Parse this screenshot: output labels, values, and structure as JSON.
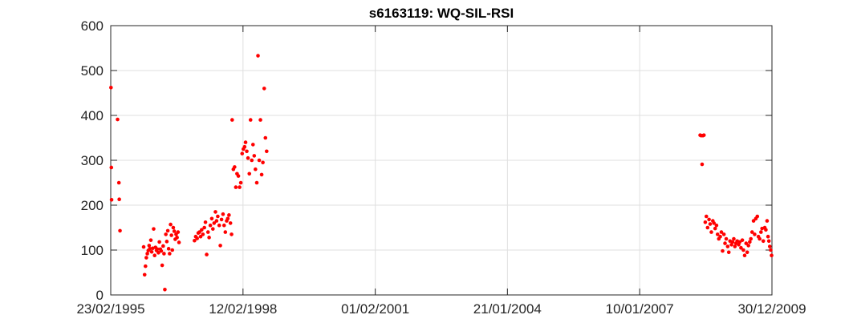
{
  "chart_data": {
    "type": "scatter",
    "title": "s6163119: WQ-SIL-RSI",
    "xlabel": "",
    "ylabel": "",
    "x_type": "date",
    "xlim": [
      "1995-02-23",
      "2009-12-30"
    ],
    "ylim": [
      0,
      600
    ],
    "x_ticks": [
      "23/02/1995",
      "12/02/1998",
      "01/02/2001",
      "21/01/2004",
      "10/01/2007",
      "30/12/2009"
    ],
    "y_ticks": [
      "0",
      "100",
      "200",
      "300",
      "400",
      "500",
      "600"
    ],
    "grid": true,
    "marker_color": "#ff0000",
    "series": [
      {
        "points": [
          [
            "1995-02-25",
            462
          ],
          [
            "1995-02-28",
            284
          ],
          [
            "1995-03-02",
            212
          ],
          [
            "1995-04-20",
            391
          ],
          [
            "1995-05-01",
            250
          ],
          [
            "1995-05-04",
            213
          ],
          [
            "1995-05-10",
            143
          ],
          [
            "1995-11-20",
            107
          ],
          [
            "1995-11-28",
            45
          ],
          [
            "1995-12-05",
            64
          ],
          [
            "1995-12-12",
            83
          ],
          [
            "1995-12-20",
            92
          ],
          [
            "1995-12-28",
            99
          ],
          [
            "1996-01-04",
            110
          ],
          [
            "1996-01-10",
            103
          ],
          [
            "1996-01-18",
            122
          ],
          [
            "1996-01-25",
            96
          ],
          [
            "1996-02-02",
            104
          ],
          [
            "1996-02-10",
            147
          ],
          [
            "1996-02-18",
            88
          ],
          [
            "1996-02-25",
            106
          ],
          [
            "1996-03-05",
            99
          ],
          [
            "1996-03-12",
            102
          ],
          [
            "1996-03-20",
            94
          ],
          [
            "1996-03-28",
            118
          ],
          [
            "1996-04-05",
            102
          ],
          [
            "1996-04-12",
            98
          ],
          [
            "1996-04-20",
            66
          ],
          [
            "1996-04-28",
            109
          ],
          [
            "1996-05-05",
            92
          ],
          [
            "1996-05-12",
            12
          ],
          [
            "1996-05-20",
            135
          ],
          [
            "1996-05-28",
            119
          ],
          [
            "1996-06-05",
            143
          ],
          [
            "1996-06-12",
            103
          ],
          [
            "1996-06-20",
            92
          ],
          [
            "1996-06-28",
            157
          ],
          [
            "1996-07-05",
            133
          ],
          [
            "1996-07-12",
            100
          ],
          [
            "1996-07-20",
            150
          ],
          [
            "1996-07-28",
            142
          ],
          [
            "1996-08-05",
            124
          ],
          [
            "1996-08-12",
            135
          ],
          [
            "1996-08-20",
            128
          ],
          [
            "1996-08-28",
            140
          ],
          [
            "1996-09-05",
            117
          ],
          [
            "1997-01-10",
            121
          ],
          [
            "1997-01-20",
            130
          ],
          [
            "1997-02-01",
            126
          ],
          [
            "1997-02-10",
            138
          ],
          [
            "1997-02-20",
            140
          ],
          [
            "1997-03-01",
            130
          ],
          [
            "1997-03-10",
            145
          ],
          [
            "1997-03-20",
            135
          ],
          [
            "1997-04-01",
            150
          ],
          [
            "1997-04-10",
            162
          ],
          [
            "1997-04-20",
            90
          ],
          [
            "1997-05-01",
            140
          ],
          [
            "1997-05-10",
            128
          ],
          [
            "1997-05-20",
            155
          ],
          [
            "1997-06-01",
            170
          ],
          [
            "1997-06-10",
            147
          ],
          [
            "1997-06-20",
            160
          ],
          [
            "1997-07-01",
            185
          ],
          [
            "1997-07-10",
            165
          ],
          [
            "1997-07-20",
            175
          ],
          [
            "1997-08-01",
            155
          ],
          [
            "1997-08-10",
            110
          ],
          [
            "1997-08-20",
            168
          ],
          [
            "1997-09-01",
            180
          ],
          [
            "1997-09-10",
            155
          ],
          [
            "1997-09-20",
            140
          ],
          [
            "1997-10-01",
            165
          ],
          [
            "1997-10-10",
            170
          ],
          [
            "1997-10-20",
            178
          ],
          [
            "1997-11-01",
            160
          ],
          [
            "1997-11-10",
            135
          ],
          [
            "1997-11-15",
            390
          ],
          [
            "1997-11-25",
            280
          ],
          [
            "1997-12-05",
            285
          ],
          [
            "1997-12-15",
            240
          ],
          [
            "1997-12-25",
            270
          ],
          [
            "1998-01-05",
            265
          ],
          [
            "1998-01-15",
            240
          ],
          [
            "1998-01-25",
            250
          ],
          [
            "1998-02-05",
            315
          ],
          [
            "1998-02-15",
            325
          ],
          [
            "1998-02-25",
            330
          ],
          [
            "1998-03-05",
            340
          ],
          [
            "1998-03-15",
            320
          ],
          [
            "1998-03-25",
            305
          ],
          [
            "1998-04-05",
            270
          ],
          [
            "1998-04-15",
            390
          ],
          [
            "1998-04-25",
            300
          ],
          [
            "1998-05-05",
            335
          ],
          [
            "1998-05-15",
            310
          ],
          [
            "1998-05-25",
            280
          ],
          [
            "1998-06-05",
            250
          ],
          [
            "1998-06-15",
            533
          ],
          [
            "1998-06-25",
            300
          ],
          [
            "1998-07-05",
            390
          ],
          [
            "1998-07-15",
            268
          ],
          [
            "1998-07-25",
            295
          ],
          [
            "1998-08-05",
            460
          ],
          [
            "1998-08-15",
            350
          ],
          [
            "1998-08-25",
            320
          ],
          [
            "2008-05-20",
            356
          ],
          [
            "2008-05-28",
            355
          ],
          [
            "2008-06-05",
            291
          ],
          [
            "2008-06-12",
            355
          ],
          [
            "2008-06-20",
            356
          ],
          [
            "2008-07-01",
            162
          ],
          [
            "2008-07-10",
            175
          ],
          [
            "2008-07-20",
            150
          ],
          [
            "2008-08-01",
            168
          ],
          [
            "2008-08-10",
            158
          ],
          [
            "2008-08-20",
            140
          ],
          [
            "2008-09-01",
            165
          ],
          [
            "2008-09-10",
            160
          ],
          [
            "2008-09-20",
            148
          ],
          [
            "2008-10-01",
            155
          ],
          [
            "2008-10-10",
            135
          ],
          [
            "2008-10-20",
            125
          ],
          [
            "2008-11-01",
            130
          ],
          [
            "2008-11-10",
            140
          ],
          [
            "2008-11-20",
            98
          ],
          [
            "2008-12-01",
            135
          ],
          [
            "2008-12-10",
            115
          ],
          [
            "2008-12-20",
            125
          ],
          [
            "2009-01-01",
            108
          ],
          [
            "2009-01-10",
            95
          ],
          [
            "2009-01-20",
            120
          ],
          [
            "2009-02-01",
            112
          ],
          [
            "2009-02-10",
            118
          ],
          [
            "2009-02-20",
            125
          ],
          [
            "2009-03-01",
            108
          ],
          [
            "2009-03-10",
            115
          ],
          [
            "2009-03-20",
            120
          ],
          [
            "2009-04-01",
            112
          ],
          [
            "2009-04-10",
            118
          ],
          [
            "2009-04-20",
            105
          ],
          [
            "2009-05-01",
            122
          ],
          [
            "2009-05-10",
            100
          ],
          [
            "2009-05-20",
            88
          ],
          [
            "2009-06-01",
            115
          ],
          [
            "2009-06-10",
            95
          ],
          [
            "2009-06-20",
            110
          ],
          [
            "2009-07-01",
            118
          ],
          [
            "2009-07-10",
            125
          ],
          [
            "2009-07-20",
            140
          ],
          [
            "2009-08-01",
            165
          ],
          [
            "2009-08-10",
            135
          ],
          [
            "2009-08-20",
            170
          ],
          [
            "2009-09-01",
            175
          ],
          [
            "2009-09-10",
            130
          ],
          [
            "2009-09-20",
            125
          ],
          [
            "2009-10-01",
            140
          ],
          [
            "2009-10-10",
            148
          ],
          [
            "2009-10-20",
            120
          ],
          [
            "2009-11-01",
            150
          ],
          [
            "2009-11-10",
            145
          ],
          [
            "2009-11-20",
            165
          ],
          [
            "2009-11-28",
            130
          ],
          [
            "2009-12-05",
            120
          ],
          [
            "2009-12-12",
            108
          ],
          [
            "2009-12-20",
            100
          ],
          [
            "2009-12-27",
            88
          ]
        ]
      }
    ]
  }
}
